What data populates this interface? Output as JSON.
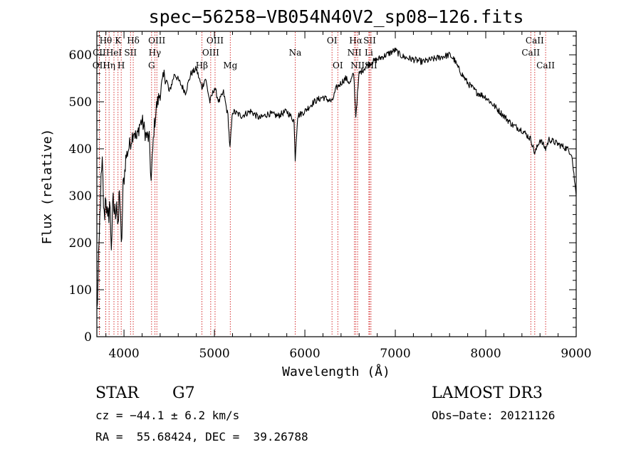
{
  "chart_data": {
    "type": "line",
    "title": "spec−56258−VB054N40V2_sp08−126.fits",
    "xlabel": "Wavelength (Å)",
    "ylabel": "Flux (relative)",
    "xlim": [
      3700,
      9000
    ],
    "ylim": [
      0,
      650
    ],
    "xticks": [
      4000,
      5000,
      6000,
      7000,
      8000,
      9000
    ],
    "xtick_labels": [
      "4000",
      "5000",
      "6000",
      "7000",
      "8000",
      "9000"
    ],
    "yticks": [
      0,
      100,
      200,
      300,
      400,
      500,
      600
    ],
    "ytick_labels": [
      "0",
      "100",
      "200",
      "300",
      "400",
      "500",
      "600"
    ],
    "series": [
      {
        "name": "flux",
        "points": [
          [
            3700,
            50
          ],
          [
            3720,
            150
          ],
          [
            3740,
            300
          ],
          [
            3760,
            360
          ],
          [
            3780,
            250
          ],
          [
            3800,
            310
          ],
          [
            3820,
            230
          ],
          [
            3840,
            290
          ],
          [
            3860,
            200
          ],
          [
            3880,
            280
          ],
          [
            3900,
            260
          ],
          [
            3920,
            300
          ],
          [
            3935,
            210
          ],
          [
            3950,
            330
          ],
          [
            3970,
            180
          ],
          [
            3990,
            310
          ],
          [
            4020,
            380
          ],
          [
            4050,
            400
          ],
          [
            4080,
            420
          ],
          [
            4110,
            440
          ],
          [
            4140,
            420
          ],
          [
            4170,
            450
          ],
          [
            4200,
            460
          ],
          [
            4240,
            430
          ],
          [
            4280,
            420
          ],
          [
            4300,
            330
          ],
          [
            4330,
            440
          ],
          [
            4360,
            490
          ],
          [
            4400,
            520
          ],
          [
            4450,
            560
          ],
          [
            4500,
            520
          ],
          [
            4560,
            560
          ],
          [
            4620,
            540
          ],
          [
            4680,
            520
          ],
          [
            4740,
            560
          ],
          [
            4800,
            570
          ],
          [
            4861,
            530
          ],
          [
            4900,
            550
          ],
          [
            4950,
            500
          ],
          [
            5000,
            530
          ],
          [
            5050,
            500
          ],
          [
            5100,
            520
          ],
          [
            5150,
            470
          ],
          [
            5172,
            400
          ],
          [
            5200,
            480
          ],
          [
            5300,
            470
          ],
          [
            5400,
            480
          ],
          [
            5500,
            465
          ],
          [
            5600,
            475
          ],
          [
            5700,
            470
          ],
          [
            5800,
            480
          ],
          [
            5880,
            460
          ],
          [
            5893,
            380
          ],
          [
            5920,
            470
          ],
          [
            6000,
            480
          ],
          [
            6100,
            500
          ],
          [
            6200,
            510
          ],
          [
            6300,
            500
          ],
          [
            6350,
            530
          ],
          [
            6400,
            540
          ],
          [
            6450,
            550
          ],
          [
            6500,
            540
          ],
          [
            6540,
            560
          ],
          [
            6563,
            470
          ],
          [
            6600,
            560
          ],
          [
            6650,
            570
          ],
          [
            6700,
            580
          ],
          [
            6800,
            590
          ],
          [
            6900,
            600
          ],
          [
            7000,
            610
          ],
          [
            7050,
            600
          ],
          [
            7100,
            595
          ],
          [
            7200,
            590
          ],
          [
            7300,
            585
          ],
          [
            7400,
            590
          ],
          [
            7500,
            595
          ],
          [
            7600,
            600
          ],
          [
            7650,
            590
          ],
          [
            7700,
            570
          ],
          [
            7800,
            540
          ],
          [
            7900,
            520
          ],
          [
            8000,
            510
          ],
          [
            8100,
            490
          ],
          [
            8200,
            470
          ],
          [
            8300,
            450
          ],
          [
            8400,
            440
          ],
          [
            8500,
            420
          ],
          [
            8542,
            390
          ],
          [
            8600,
            420
          ],
          [
            8662,
            400
          ],
          [
            8700,
            420
          ],
          [
            8800,
            410
          ],
          [
            8900,
            400
          ],
          [
            8950,
            390
          ],
          [
            9000,
            300
          ]
        ]
      }
    ],
    "lines": [
      {
        "label": "Hθ",
        "x": 3798,
        "row": 0
      },
      {
        "label": "CII",
        "x": 3727,
        "row": 1
      },
      {
        "label": "OII",
        "x": 3727,
        "row": 2
      },
      {
        "label": "K",
        "x": 3934,
        "row": 0
      },
      {
        "label": "HeI",
        "x": 3889,
        "row": 1
      },
      {
        "label": "Hη",
        "x": 3835,
        "row": 2
      },
      {
        "label": "SII",
        "x": 4072,
        "row": 1
      },
      {
        "label": "H",
        "x": 3969,
        "row": 2
      },
      {
        "label": "Hδ",
        "x": 4102,
        "row": 0
      },
      {
        "label": "OIII",
        "x": 4363,
        "row": 0
      },
      {
        "label": "Hγ",
        "x": 4341,
        "row": 1
      },
      {
        "label": "G",
        "x": 4305,
        "row": 2
      },
      {
        "label": "Hβ",
        "x": 4861,
        "row": 2
      },
      {
        "label": "OIII",
        "x": 5007,
        "row": 0
      },
      {
        "label": "OIII",
        "x": 4959,
        "row": 1
      },
      {
        "label": "Mg",
        "x": 5175,
        "row": 2
      },
      {
        "label": "Na",
        "x": 5893,
        "row": 1
      },
      {
        "label": "OI",
        "x": 6300,
        "row": 0
      },
      {
        "label": "OI",
        "x": 6364,
        "row": 2
      },
      {
        "label": "Hα",
        "x": 6563,
        "row": 0
      },
      {
        "label": "SII",
        "x": 6716,
        "row": 0
      },
      {
        "label": "NII",
        "x": 6548,
        "row": 1
      },
      {
        "label": "Li",
        "x": 6708,
        "row": 1
      },
      {
        "label": "NII",
        "x": 6583,
        "row": 2
      },
      {
        "label": "SII",
        "x": 6731,
        "row": 2
      },
      {
        "label": "CaII",
        "x": 8542,
        "row": 0
      },
      {
        "label": "CaII",
        "x": 8498,
        "row": 1
      },
      {
        "label": "CaII",
        "x": 8662,
        "row": 2
      }
    ]
  },
  "info": {
    "object_class": "STAR",
    "subclass": "G7",
    "survey": "LAMOST DR3",
    "cz": "cz = −44.1 ± 6.2 km/s",
    "obs_date": "Obs−Date: 20121126",
    "coords": "RA =  55.68424, DEC =  39.26788"
  },
  "colors": {
    "line": "#cc0000",
    "spectrum": "#000000"
  }
}
